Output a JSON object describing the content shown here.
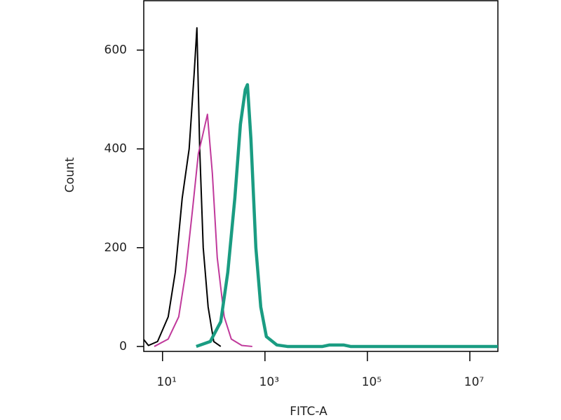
{
  "chart_data": {
    "type": "line",
    "xlabel": "FITC-A",
    "ylabel": "Count",
    "xscale": "log",
    "xlim": [
      4.3,
      35300000
    ],
    "ylim": [
      -10,
      700
    ],
    "xticks": [
      {
        "value": 10,
        "label": "10¹"
      },
      {
        "value": 1000,
        "label": "10³"
      },
      {
        "value": 100000,
        "label": "10⁵"
      },
      {
        "value": 10000000,
        "label": "10⁷"
      }
    ],
    "yticks": [
      0,
      200,
      400,
      600
    ],
    "series": [
      {
        "color": "#000000",
        "width": 2,
        "x": [
          4.3,
          5.3,
          8.0,
          12.9,
          17.7,
          24.2,
          33.1,
          41.3,
          46.9,
          53.2,
          62.3,
          77.7,
          100,
          137
        ],
        "values": [
          14,
          2,
          10,
          60,
          150,
          300,
          400,
          550,
          645,
          400,
          200,
          80,
          10,
          0
        ]
      },
      {
        "color": "#c0399b",
        "width": 2,
        "x": [
          6.9,
          12.9,
          20.7,
          28.3,
          38.8,
          50.0,
          58.5,
          75.3,
          94.0,
          117,
          160,
          220,
          353,
          566
        ],
        "values": [
          0,
          15,
          60,
          150,
          280,
          390,
          420,
          470,
          350,
          180,
          60,
          15,
          2,
          0
        ]
      },
      {
        "color": "#1a9c82",
        "width": 4.5,
        "x": [
          45.5,
          85.5,
          137,
          188,
          258,
          332,
          413,
          455,
          532,
          664,
          828,
          1065,
          1710,
          2740,
          13300,
          18200,
          34200,
          46900,
          35300000
        ],
        "values": [
          0,
          10,
          50,
          150,
          300,
          450,
          520,
          530,
          420,
          200,
          80,
          20,
          3,
          0,
          0,
          3,
          3,
          0,
          0
        ]
      }
    ]
  }
}
